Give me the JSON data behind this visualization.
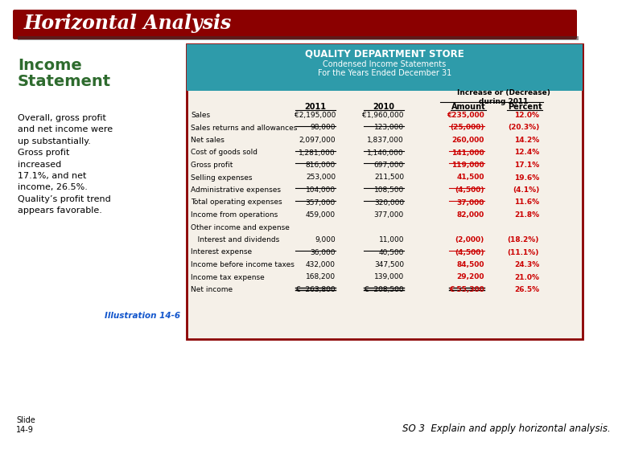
{
  "title": "Horizontal Analysis",
  "title_bg": "#8B0000",
  "title_color": "#FFFFFF",
  "left_heading": "Income\nStatement",
  "left_heading_color": "#2E6B2E",
  "left_text": "Overall, gross profit\nand net income were\nup substantially.\nGross profit\nincreased\n17.1%, and net\nincome, 26.5%.\nQuality’s profit trend\nappears favorable.",
  "illustration": "Illustration 14-6",
  "illustration_color": "#1155CC",
  "bottom_left": "Slide\n14-9",
  "bottom_right": "SO 3  Explain and apply horizontal analysis.",
  "table_header_bg": "#2E9BAA",
  "table_title": "QUALITY DEPARTMENT STORE",
  "table_sub1": "Condensed Income Statements",
  "table_sub2": "For the Years Ended December 31",
  "table_bg": "#F5F0E8",
  "table_border": "#8B0000",
  "col_subheader": "Increase or (Decrease)\nduring 2011",
  "rows": [
    {
      "label": "Sales",
      "v2011": "€2,195,000",
      "v2010": "€1,960,000",
      "amount": "€235,000",
      "percent": "12.0%",
      "highlight": true,
      "bold_amount": true,
      "ul_below": false
    },
    {
      "label": "Sales returns and allowances",
      "v2011": "98,000",
      "v2010": "123,000",
      "amount": "(25,000)",
      "percent": "(20.3%)",
      "highlight": true,
      "bold_amount": true,
      "ul_below": true
    },
    {
      "label": "Net sales",
      "v2011": "2,097,000",
      "v2010": "1,837,000",
      "amount": "260,000",
      "percent": "14.2%",
      "highlight": true,
      "bold_amount": true,
      "ul_below": false
    },
    {
      "label": "Cost of goods sold",
      "v2011": "1,281,000",
      "v2010": "1,140,000",
      "amount": "141,000",
      "percent": "12.4%",
      "highlight": true,
      "bold_amount": true,
      "ul_below": true
    },
    {
      "label": "Gross profit",
      "v2011": "816,000",
      "v2010": "697,000",
      "amount": "119,000",
      "percent": "17.1%",
      "highlight": true,
      "bold_amount": true,
      "ul_below": true
    },
    {
      "label": "Selling expenses",
      "v2011": "253,000",
      "v2010": "211,500",
      "amount": "41,500",
      "percent": "19.6%",
      "highlight": true,
      "bold_amount": true,
      "ul_below": false
    },
    {
      "label": "Administrative expenses",
      "v2011": "104,000",
      "v2010": "108,500",
      "amount": "(4,500)",
      "percent": "(4.1%)",
      "highlight": true,
      "bold_amount": true,
      "ul_below": true
    },
    {
      "label": "Total operating expenses",
      "v2011": "357,000",
      "v2010": "320,000",
      "amount": "37,000",
      "percent": "11.6%",
      "highlight": true,
      "bold_amount": true,
      "ul_below": true
    },
    {
      "label": "Income from operations",
      "v2011": "459,000",
      "v2010": "377,000",
      "amount": "82,000",
      "percent": "21.8%",
      "highlight": true,
      "bold_amount": true,
      "ul_below": false
    },
    {
      "label": "Other income and expense",
      "v2011": "",
      "v2010": "",
      "amount": "",
      "percent": "",
      "highlight": false,
      "bold_amount": false,
      "ul_below": false
    },
    {
      "label": "   Interest and dividends",
      "v2011": "9,000",
      "v2010": "11,000",
      "amount": "(2,000)",
      "percent": "(18.2%)",
      "highlight": true,
      "bold_amount": true,
      "ul_below": false
    },
    {
      "label": "Interest expense",
      "v2011": "36,000",
      "v2010": "40,500",
      "amount": "(4,500)",
      "percent": "(11.1%)",
      "highlight": true,
      "bold_amount": true,
      "ul_below": true
    },
    {
      "label": "Income before income taxes",
      "v2011": "432,000",
      "v2010": "347,500",
      "amount": "84,500",
      "percent": "24.3%",
      "highlight": true,
      "bold_amount": true,
      "ul_below": false
    },
    {
      "label": "Income tax expense",
      "v2011": "168,200",
      "v2010": "139,000",
      "amount": "29,200",
      "percent": "21.0%",
      "highlight": true,
      "bold_amount": true,
      "ul_below": false
    },
    {
      "label": "Net income",
      "v2011": "€  263,800",
      "v2010": "€  208,500",
      "amount": "€ 55,300",
      "percent": "26.5%",
      "highlight": true,
      "bold_amount": true,
      "ul_below": false,
      "double_underline": true
    }
  ],
  "normal_color": "#000000",
  "highlight_color": "#CC0000",
  "bg_color": "#FFFFFF"
}
